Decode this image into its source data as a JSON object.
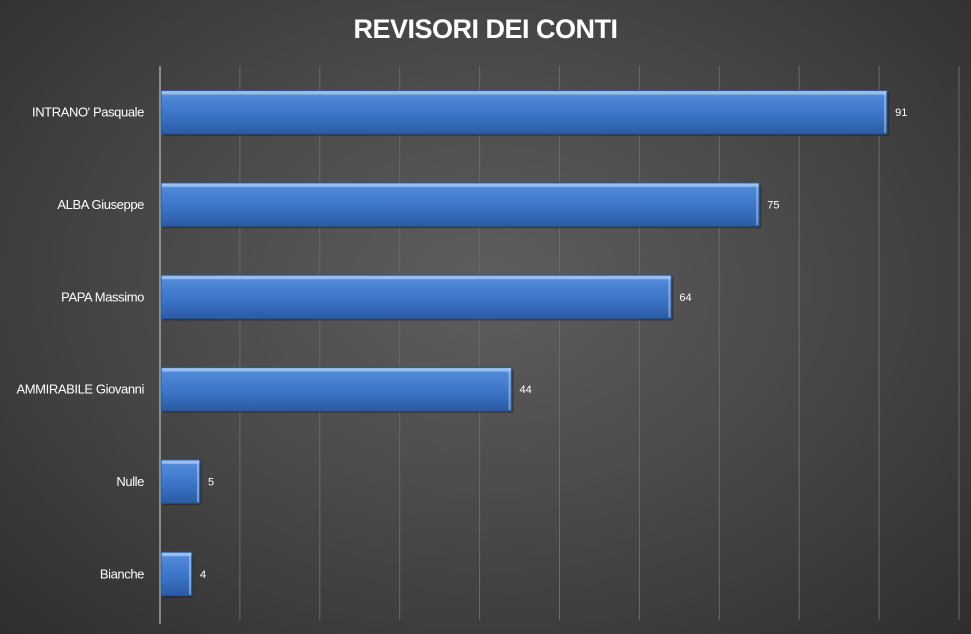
{
  "chart_data": {
    "type": "bar",
    "orientation": "horizontal",
    "title": "REVISORI DEI CONTI",
    "categories": [
      "INTRANO' Pasquale",
      "ALBA Giuseppe",
      "PAPA Massimo",
      "AMMIRABILE Giovanni",
      "Nulle",
      "Bianche"
    ],
    "values": [
      91,
      75,
      64,
      44,
      5,
      4
    ],
    "xlim": [
      0,
      100
    ],
    "grid": true,
    "legend": "none",
    "bar_color": "#3f79c9"
  }
}
